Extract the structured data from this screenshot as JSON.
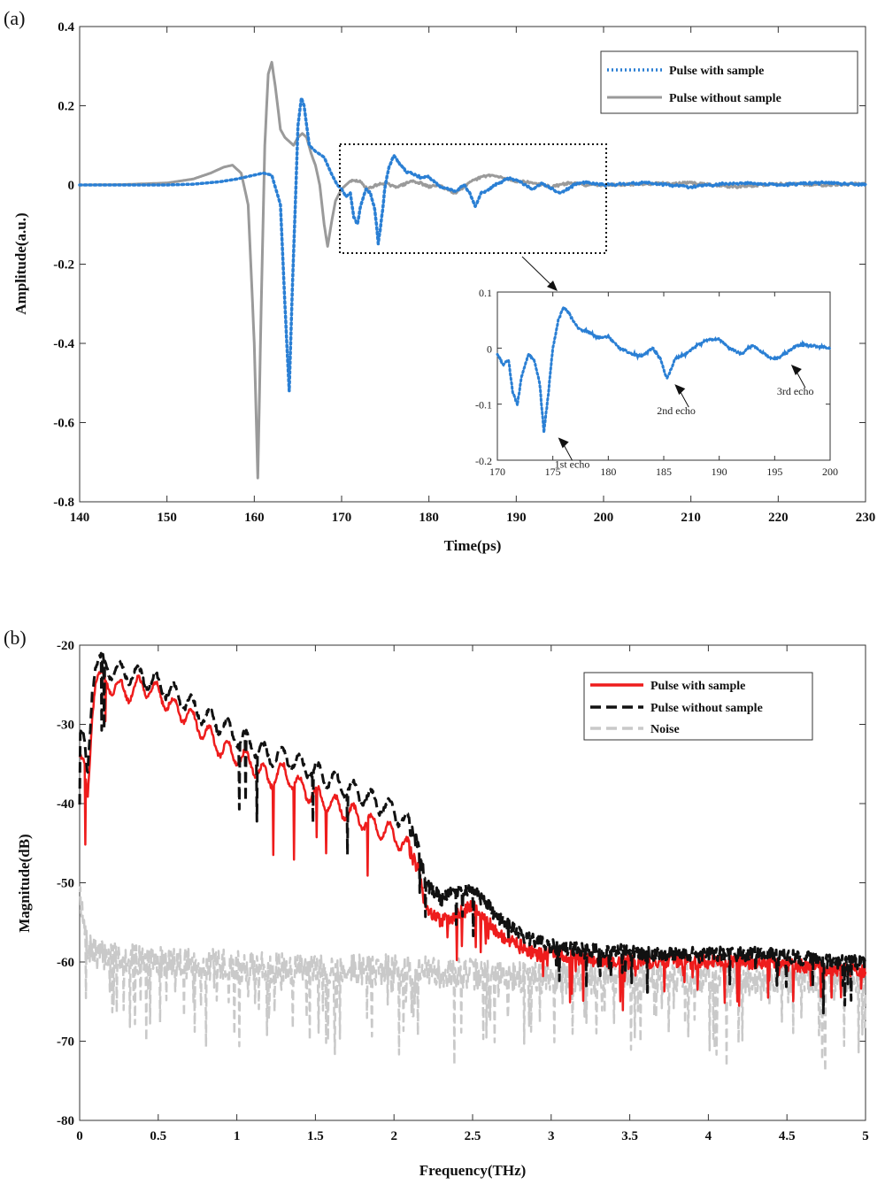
{
  "chart_data": [
    {
      "panel_label": "(a)",
      "type": "line",
      "xlabel": "Time(ps)",
      "ylabel": "Amplitude(a.u.)",
      "xlim": [
        140,
        230
      ],
      "ylim": [
        -0.8,
        0.4
      ],
      "xticks": [
        140,
        150,
        160,
        170,
        180,
        190,
        200,
        210,
        220,
        230
      ],
      "yticks": [
        -0.8,
        -0.6,
        -0.4,
        -0.2,
        0,
        0.2,
        0.4
      ],
      "xtick_labels": [
        "140",
        "150",
        "160",
        "170",
        "180",
        "190",
        "200",
        "210",
        "220",
        "230"
      ],
      "ytick_labels": [
        "-0.8",
        "-0.6",
        "-0.4",
        "-0.2",
        "0",
        "0.2",
        "0.4"
      ],
      "legend": "top-right",
      "series": [
        {
          "name": "Pulse with sample",
          "color": "#2a7fd4",
          "style": "dotted",
          "x": [
            140,
            150,
            153,
            156,
            158,
            160,
            161,
            162,
            163,
            163.5,
            164,
            164.3,
            164.7,
            165,
            165.4,
            165.7,
            166.3,
            167,
            168,
            168.8,
            169.5,
            170,
            170.5,
            171,
            171.4,
            171.8,
            172.2,
            172.8,
            173.3,
            173.8,
            174.2,
            174.6,
            175,
            175.5,
            176,
            176.5,
            177.3,
            178,
            179,
            180,
            181,
            182,
            183,
            184,
            184.7,
            185.3,
            186,
            187,
            188,
            189,
            190,
            191,
            192,
            193,
            194,
            195,
            196,
            197,
            198,
            200,
            205,
            210,
            215,
            220,
            225,
            230
          ],
          "y": [
            0,
            0,
            0.002,
            0.008,
            0.015,
            0.025,
            0.03,
            0.025,
            -0.05,
            -0.3,
            -0.52,
            -0.3,
            -0.05,
            0.15,
            0.22,
            0.2,
            0.1,
            0.085,
            0.07,
            0.03,
            0.0,
            -0.01,
            -0.03,
            -0.02,
            -0.08,
            -0.1,
            -0.05,
            -0.01,
            -0.02,
            -0.06,
            -0.15,
            -0.08,
            0.0,
            0.05,
            0.075,
            0.06,
            0.035,
            0.03,
            0.02,
            0.02,
            0.0,
            -0.01,
            -0.015,
            0.0,
            -0.02,
            -0.055,
            -0.02,
            -0.01,
            0.005,
            0.015,
            0.015,
            0.0,
            -0.01,
            0.005,
            -0.01,
            -0.02,
            -0.01,
            0.005,
            0.005,
            0.0,
            0.005,
            -0.005,
            0.005,
            0.0,
            0.005,
            0.0
          ]
        },
        {
          "name": "Pulse without sample",
          "color": "#9a9a9a",
          "style": "solid",
          "x": [
            140,
            145,
            150,
            153,
            155,
            156.5,
            157.5,
            158.5,
            159.3,
            160,
            160.4,
            160.8,
            161.2,
            161.6,
            162,
            162.4,
            163,
            163.5,
            164,
            164.5,
            165,
            165.5,
            166,
            166.5,
            167,
            167.5,
            168,
            168.4,
            168.8,
            169.3,
            170,
            171,
            172,
            173,
            174,
            175,
            176,
            177,
            178,
            179,
            180,
            181,
            182,
            183,
            184,
            185,
            186,
            187,
            188,
            189,
            190,
            192,
            194,
            196,
            198,
            200,
            205,
            210,
            215,
            220,
            225,
            230
          ],
          "y": [
            0,
            0.001,
            0.005,
            0.015,
            0.03,
            0.045,
            0.05,
            0.03,
            -0.05,
            -0.4,
            -0.74,
            -0.3,
            0.1,
            0.28,
            0.31,
            0.25,
            0.14,
            0.12,
            0.11,
            0.1,
            0.12,
            0.13,
            0.12,
            0.08,
            0.05,
            0.0,
            -0.1,
            -0.155,
            -0.1,
            -0.04,
            -0.01,
            0.01,
            0.01,
            -0.01,
            0.0,
            0.005,
            -0.005,
            0.0,
            0.01,
            0.005,
            -0.005,
            0.0,
            -0.01,
            -0.02,
            -0.005,
            0.01,
            0.02,
            0.025,
            0.02,
            0.015,
            0.01,
            0.005,
            -0.005,
            0.005,
            0.0,
            0.0,
            0.003,
            0.005,
            -0.005,
            0.003,
            0.0,
            0.003
          ]
        }
      ],
      "inset": {
        "xlim": [
          170,
          200
        ],
        "ylim": [
          -0.2,
          0.1
        ],
        "xticks": [
          170,
          175,
          180,
          185,
          190,
          195,
          200
        ],
        "yticks": [
          -0.2,
          -0.1,
          0,
          0.1
        ],
        "xtick_labels": [
          "170",
          "175",
          "180",
          "185",
          "190",
          "195",
          "200"
        ],
        "ytick_labels": [
          "-0.2",
          "-0.1",
          "0",
          "0.1"
        ],
        "annotations": [
          {
            "text": "1st echo",
            "x": 175,
            "y": -0.15
          },
          {
            "text": "2nd echo",
            "x": 185.5,
            "y": -0.055
          },
          {
            "text": "3rd echo",
            "x": 196,
            "y": -0.02
          }
        ]
      }
    },
    {
      "panel_label": "(b)",
      "type": "line",
      "xlabel": "Frequency(THz)",
      "ylabel": "Magnitude(dB)",
      "xlim": [
        0,
        5
      ],
      "ylim": [
        -80,
        -20
      ],
      "xticks": [
        0,
        0.5,
        1,
        1.5,
        2,
        2.5,
        3,
        3.5,
        4,
        4.5,
        5
      ],
      "yticks": [
        -80,
        -70,
        -60,
        -50,
        -40,
        -30,
        -20
      ],
      "xtick_labels": [
        "0",
        "0.5",
        "1",
        "1.5",
        "2",
        "2.5",
        "3",
        "3.5",
        "4",
        "4.5",
        "5"
      ],
      "ytick_labels": [
        "-80",
        "-70",
        "-60",
        "-50",
        "-40",
        "-30",
        "-20"
      ],
      "legend": "top-right",
      "series": [
        {
          "name": "Pulse with sample",
          "color": "#ee1c1c",
          "style": "solid",
          "x": [
            0,
            0.03,
            0.05,
            0.08,
            0.1,
            0.2,
            0.3,
            0.4,
            0.5,
            0.6,
            0.7,
            0.8,
            0.9,
            1.0,
            1.1,
            1.2,
            1.3,
            1.4,
            1.5,
            1.6,
            1.7,
            1.8,
            1.9,
            2.0,
            2.1,
            2.15,
            2.2,
            2.3,
            2.4,
            2.5,
            2.6,
            2.7,
            2.8,
            2.9,
            3.0,
            3.2,
            3.4,
            3.6,
            3.8,
            4.0,
            4.2,
            4.4,
            4.6,
            4.8,
            5.0
          ],
          "y": [
            -34,
            -36,
            -40,
            -28,
            -24,
            -25,
            -26,
            -25,
            -26,
            -28,
            -29,
            -31,
            -33,
            -34,
            -35,
            -37,
            -36,
            -38,
            -39,
            -40,
            -41,
            -42,
            -43,
            -44,
            -46,
            -48,
            -53,
            -55,
            -54,
            -53,
            -55,
            -57,
            -58,
            -59,
            -59,
            -59.5,
            -60,
            -60,
            -60,
            -60,
            -60,
            -60,
            -60.5,
            -61,
            -61
          ]
        },
        {
          "name": "Pulse without sample",
          "color": "#111111",
          "style": "dashed",
          "x": [
            0,
            0.03,
            0.05,
            0.08,
            0.1,
            0.2,
            0.3,
            0.4,
            0.5,
            0.6,
            0.7,
            0.8,
            0.9,
            1.0,
            1.1,
            1.2,
            1.3,
            1.4,
            1.5,
            1.6,
            1.7,
            1.8,
            1.9,
            2.0,
            2.1,
            2.15,
            2.2,
            2.3,
            2.4,
            2.5,
            2.6,
            2.7,
            2.8,
            2.9,
            3.0,
            3.2,
            3.4,
            3.6,
            3.8,
            4.0,
            4.2,
            4.4,
            4.6,
            4.8,
            5.0
          ],
          "y": [
            -31,
            -33,
            -37,
            -25,
            -22,
            -23,
            -23.5,
            -24,
            -25,
            -26,
            -27.5,
            -29,
            -30,
            -31.5,
            -32.5,
            -34,
            -34,
            -35,
            -36,
            -37,
            -38,
            -39,
            -40,
            -41,
            -43,
            -45,
            -50,
            -52,
            -51,
            -51,
            -53,
            -55,
            -56.5,
            -57.5,
            -58,
            -58.5,
            -58.5,
            -59,
            -59,
            -59,
            -59,
            -59,
            -59.5,
            -60,
            -60
          ]
        },
        {
          "name": "Noise",
          "color": "#c9c9c9",
          "style": "dashed",
          "x": [
            0,
            0.02,
            0.05,
            0.1,
            0.5,
            1.0,
            1.5,
            2.0,
            2.5,
            3.0,
            3.5,
            4.0,
            4.5,
            5.0
          ],
          "y": [
            -50,
            -55,
            -58,
            -59,
            -60,
            -60.5,
            -61,
            -61,
            -61.5,
            -62,
            -62,
            -62,
            -62,
            -62
          ]
        }
      ]
    }
  ]
}
